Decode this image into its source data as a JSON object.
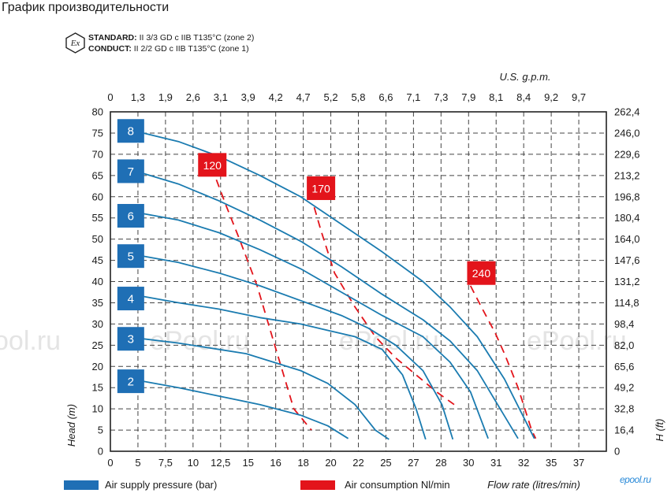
{
  "page_title": "График производительности",
  "certification": {
    "icon": "ex-hexagon-icon",
    "standard_label": "STANDARD:",
    "standard_text": "II 3/3 GD c IIB T135°C (zone 2)",
    "conduct_label": "CONDUCT:",
    "conduct_text": "II 2/2 GD c IIB T135°C (zone 1)"
  },
  "watermark": [
    "ool.ru",
    "ePool.ru",
    "ePool.ru",
    "ePool.ru"
  ],
  "logo_text": "epool.ru",
  "chart_data": {
    "type": "line",
    "xlabel": "Flow rate (litres/min)",
    "x2label": "U.S. g.p.m.",
    "ylabel": "Head (m)",
    "y2label": "H (ft)",
    "xlim": [
      0,
      36.5
    ],
    "ylim": [
      0,
      80
    ],
    "x_ticks": [
      "0",
      "5",
      "7,5",
      "10",
      "12,5",
      "15",
      "16",
      "18",
      "20",
      "22",
      "25",
      "27",
      "28",
      "30",
      "31",
      "32",
      "35",
      "37"
    ],
    "x2_ticks": [
      "0",
      "1,3",
      "1,9",
      "2,6",
      "3,1",
      "3,9",
      "4,2",
      "4,7",
      "5,2",
      "5,8",
      "6,6",
      "7,1",
      "7,3",
      "7,9",
      "8,1",
      "8,4",
      "9,2",
      "9,7"
    ],
    "y_ticks": [
      0,
      5,
      10,
      15,
      20,
      25,
      30,
      35,
      40,
      45,
      50,
      55,
      60,
      65,
      70,
      75,
      80
    ],
    "y2_ticks": [
      "0",
      "16,4",
      "32,8",
      "49,2",
      "65,6",
      "82,0",
      "98,4",
      "114,8",
      "131,2",
      "147,6",
      "164,0",
      "180,4",
      "196,8",
      "213,2",
      "229,6",
      "246,0",
      "262,4"
    ],
    "grid": true,
    "legend": [
      {
        "label": "Air supply pressure (bar)",
        "color": "#1f6fb5"
      },
      {
        "label": "Air consumption Nl/min",
        "color": "#e3141b"
      }
    ],
    "colors": {
      "pressure": "#1f6fb5",
      "curve": "#1a7bb0",
      "air": "#e3141b"
    },
    "pressure_series": [
      {
        "label": "8",
        "label_pos": [
          1.5,
          75.5
        ],
        "points": [
          [
            2.4,
            75
          ],
          [
            5,
            73
          ],
          [
            8,
            69.5
          ],
          [
            11,
            65
          ],
          [
            14,
            60
          ],
          [
            17,
            53.5
          ],
          [
            20,
            47
          ],
          [
            23,
            40
          ],
          [
            25,
            34
          ],
          [
            27,
            27
          ],
          [
            29,
            17
          ],
          [
            31.2,
            3
          ]
        ]
      },
      {
        "label": "7",
        "label_pos": [
          1.5,
          66
        ],
        "points": [
          [
            2.4,
            65.5
          ],
          [
            5,
            63
          ],
          [
            8,
            59
          ],
          [
            11,
            54.5
          ],
          [
            14,
            49.5
          ],
          [
            17,
            43.5
          ],
          [
            20,
            37
          ],
          [
            23,
            31
          ],
          [
            25,
            26
          ],
          [
            27,
            19
          ],
          [
            28.5,
            11
          ],
          [
            30,
            3
          ]
        ]
      },
      {
        "label": "6",
        "label_pos": [
          1.5,
          55.5
        ],
        "points": [
          [
            2.4,
            56
          ],
          [
            5,
            54.5
          ],
          [
            8,
            51.5
          ],
          [
            11,
            47.5
          ],
          [
            14,
            43
          ],
          [
            17,
            37.5
          ],
          [
            20,
            32
          ],
          [
            23,
            27
          ],
          [
            25,
            21
          ],
          [
            26.5,
            14
          ],
          [
            27.8,
            3
          ]
        ]
      },
      {
        "label": "5",
        "label_pos": [
          1.5,
          46
        ],
        "points": [
          [
            2.4,
            46
          ],
          [
            5,
            44.5
          ],
          [
            8,
            42
          ],
          [
            11,
            39
          ],
          [
            14,
            35.5
          ],
          [
            17,
            32
          ],
          [
            19,
            29
          ],
          [
            21,
            25
          ],
          [
            23,
            19
          ],
          [
            24.4,
            11
          ],
          [
            25.2,
            2.8
          ]
        ]
      },
      {
        "label": "4",
        "label_pos": [
          1.5,
          36
        ],
        "points": [
          [
            2.4,
            36.5
          ],
          [
            5,
            35
          ],
          [
            8,
            33.5
          ],
          [
            11,
            31.5
          ],
          [
            14,
            30
          ],
          [
            16,
            28.5
          ],
          [
            18,
            27
          ],
          [
            20,
            24
          ],
          [
            21.5,
            18
          ],
          [
            22.5,
            10
          ],
          [
            23.2,
            2.8
          ]
        ]
      },
      {
        "label": "3",
        "label_pos": [
          1.5,
          26.5
        ],
        "points": [
          [
            2.4,
            26.5
          ],
          [
            5,
            25.5
          ],
          [
            8,
            24
          ],
          [
            10,
            23
          ],
          [
            12,
            21
          ],
          [
            14,
            19
          ],
          [
            16,
            16
          ],
          [
            18,
            11
          ],
          [
            19.5,
            5
          ],
          [
            20.5,
            2.8
          ]
        ]
      },
      {
        "label": "2",
        "label_pos": [
          1.5,
          16.5
        ],
        "points": [
          [
            2.4,
            16.5
          ],
          [
            5,
            15
          ],
          [
            8,
            13
          ],
          [
            11,
            11
          ],
          [
            14,
            8.5
          ],
          [
            16,
            6
          ],
          [
            17.5,
            3
          ]
        ]
      }
    ],
    "air_series": [
      {
        "label": "120",
        "label_pos": [
          7.5,
          67.5
        ],
        "points": [
          [
            7.8,
            64
          ],
          [
            8.5,
            58
          ],
          [
            9.5,
            50
          ],
          [
            10.8,
            39
          ],
          [
            12,
            26
          ],
          [
            13.5,
            10
          ],
          [
            14.8,
            5
          ]
        ]
      },
      {
        "label": "170",
        "label_pos": [
          15.5,
          62
        ],
        "points": [
          [
            15,
            57.5
          ],
          [
            15.5,
            52
          ],
          [
            16.5,
            42
          ],
          [
            18,
            34
          ],
          [
            19.5,
            27
          ],
          [
            21,
            22
          ],
          [
            22.5,
            18
          ],
          [
            24,
            14
          ],
          [
            25.3,
            11
          ]
        ]
      },
      {
        "label": "240",
        "label_pos": [
          27.3,
          42
        ],
        "points": [
          [
            26.5,
            39
          ],
          [
            27.3,
            34
          ],
          [
            28.3,
            28
          ],
          [
            29,
            23
          ],
          [
            29.5,
            19
          ],
          [
            30,
            15
          ],
          [
            30.5,
            10
          ],
          [
            31,
            5
          ],
          [
            31.3,
            3
          ]
        ]
      }
    ]
  }
}
